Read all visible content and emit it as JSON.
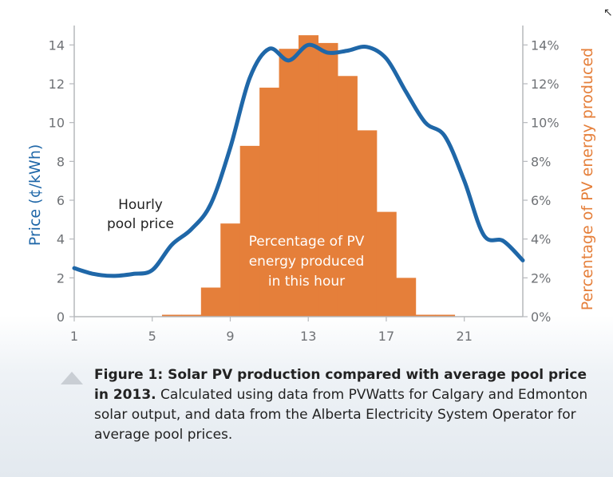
{
  "chart_data": {
    "type": "bar+line",
    "x_ticks": [
      1,
      5,
      9,
      13,
      17,
      21
    ],
    "xlim": [
      1,
      24
    ],
    "left_axis": {
      "label": "Price (¢/kWh)",
      "ylim": [
        0,
        15
      ],
      "ticks": [
        "0",
        "2",
        "4",
        "6",
        "8",
        "10",
        "12",
        "14"
      ],
      "color": "#1f67a8"
    },
    "right_axis": {
      "label": "Percentage of PV energy produced",
      "ylim": [
        0,
        15
      ],
      "ticks": [
        "0%",
        "2%",
        "4%",
        "6%",
        "8%",
        "10%",
        "12%",
        "14%"
      ],
      "color": "#e57f3a"
    },
    "pv_bars": {
      "name": "Percentage of PV energy produced in this hour",
      "x": [
        6,
        7,
        8,
        9,
        10,
        11,
        12,
        13,
        14,
        15,
        16,
        17,
        18,
        19,
        20
      ],
      "values": [
        0.1,
        0.1,
        1.5,
        4.8,
        8.8,
        11.8,
        13.8,
        14.5,
        14.1,
        12.4,
        9.6,
        5.4,
        2.0,
        0.1,
        0.1
      ],
      "color": "#e57f3a"
    },
    "price_line": {
      "name": "Hourly pool price",
      "x": [
        1,
        2,
        3,
        4,
        5,
        6,
        7,
        8,
        9,
        10,
        11,
        12,
        13,
        14,
        15,
        16,
        17,
        18,
        19,
        20,
        21,
        22,
        23,
        24
      ],
      "values": [
        2.5,
        2.2,
        2.1,
        2.2,
        2.4,
        3.7,
        4.5,
        5.8,
        8.7,
        12.3,
        13.8,
        13.2,
        14.0,
        13.6,
        13.7,
        13.9,
        13.3,
        11.6,
        10.0,
        9.3,
        7.0,
        4.2,
        3.9,
        2.9
      ],
      "color": "#1f67a8"
    },
    "annotations": {
      "line_label": [
        "Hourly",
        "pool price"
      ],
      "bar_label": [
        "Percentage of PV",
        "energy produced",
        "in this hour"
      ]
    }
  },
  "caption": {
    "bold": "Figure 1: Solar PV production compared with average pool price in 2013.",
    "text": " Calculated using data from PVWatts for Calgary and Edmonton solar output, and data from the Alberta Electricity System Operator for average pool prices."
  }
}
